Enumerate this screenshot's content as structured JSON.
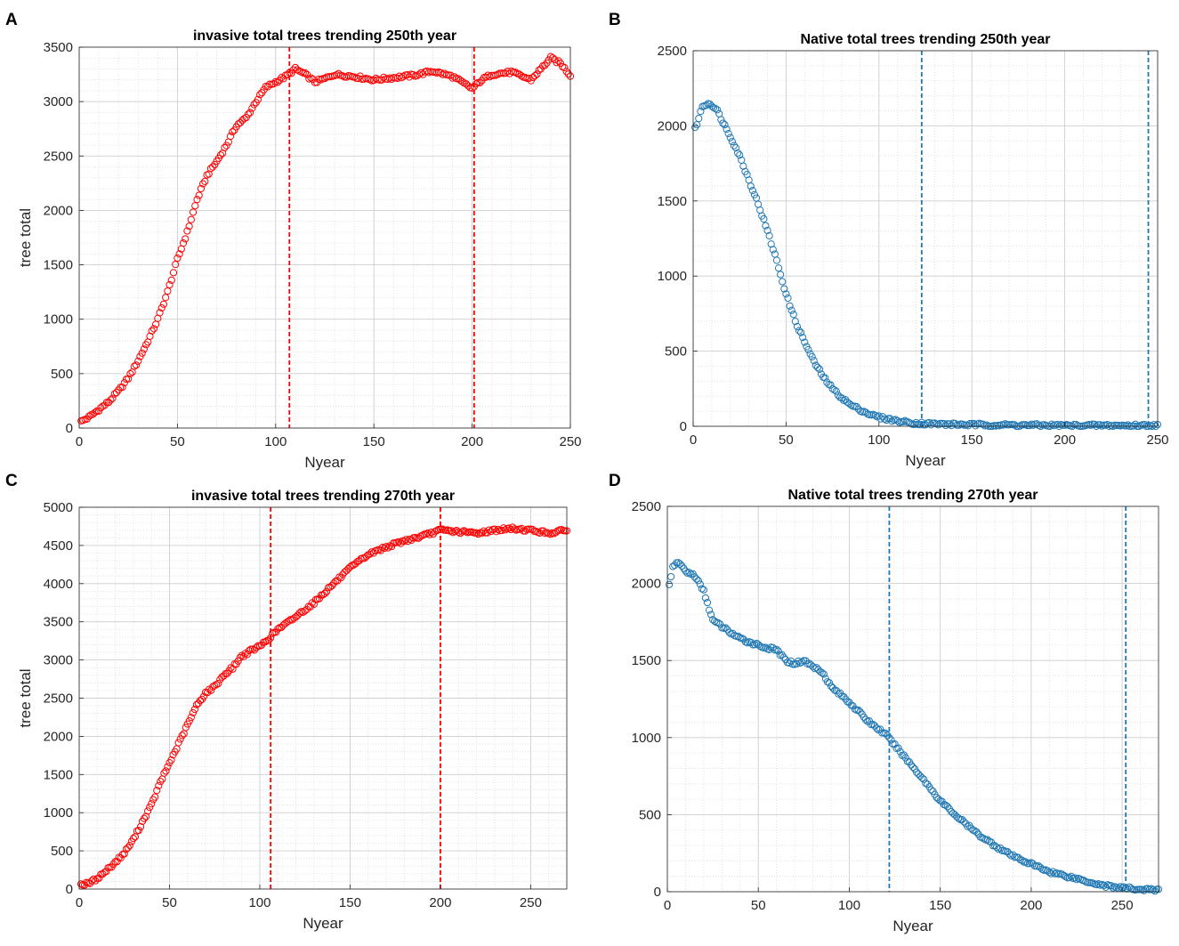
{
  "chart_data": [
    {
      "panel": "A",
      "type": "scatter",
      "title": "invasive total trees trending 250th year",
      "xlabel": "Nyear",
      "ylabel": "tree total",
      "xlim": [
        0,
        250
      ],
      "ylim": [
        0,
        3500
      ],
      "xticks": [
        0,
        50,
        100,
        150,
        200,
        250
      ],
      "yticks": [
        0,
        500,
        1000,
        1500,
        2000,
        2500,
        3000,
        3500
      ],
      "grid": true,
      "minor_grid": true,
      "marker": "open-circle",
      "color": "#ff0000",
      "vlines": [
        107,
        201
      ],
      "series_keypoints": {
        "x": [
          1,
          5,
          10,
          15,
          20,
          25,
          30,
          35,
          40,
          45,
          50,
          55,
          60,
          65,
          70,
          75,
          80,
          85,
          90,
          95,
          100,
          105,
          110,
          115,
          120,
          125,
          130,
          140,
          150,
          160,
          170,
          180,
          190,
          200,
          205,
          210,
          220,
          230,
          235,
          240,
          245,
          250
        ],
        "y": [
          60,
          100,
          170,
          240,
          340,
          460,
          620,
          800,
          1000,
          1250,
          1550,
          1800,
          2100,
          2320,
          2450,
          2600,
          2780,
          2850,
          3000,
          3130,
          3180,
          3230,
          3300,
          3250,
          3180,
          3210,
          3250,
          3230,
          3200,
          3220,
          3240,
          3280,
          3230,
          3120,
          3200,
          3250,
          3270,
          3200,
          3300,
          3400,
          3350,
          3240
        ]
      }
    },
    {
      "panel": "B",
      "type": "scatter",
      "title": "Native total trees trending 250th year",
      "xlabel": "Nyear",
      "ylabel": "",
      "xlim": [
        0,
        250
      ],
      "ylim": [
        0,
        2500
      ],
      "xticks": [
        0,
        50,
        100,
        150,
        200,
        250
      ],
      "yticks": [
        0,
        500,
        1000,
        1500,
        2000,
        2500
      ],
      "grid": true,
      "minor_grid": true,
      "marker": "open-circle",
      "color": "#1f77b4",
      "vlines": [
        123,
        245
      ],
      "series_keypoints": {
        "x": [
          1,
          3,
          5,
          8,
          10,
          13,
          15,
          20,
          25,
          30,
          35,
          40,
          45,
          50,
          55,
          60,
          65,
          70,
          75,
          80,
          85,
          90,
          95,
          100,
          110,
          120,
          130,
          150,
          200,
          250
        ],
        "y": [
          1980,
          2050,
          2130,
          2150,
          2140,
          2100,
          2050,
          1930,
          1800,
          1640,
          1480,
          1300,
          1100,
          880,
          700,
          560,
          430,
          330,
          250,
          190,
          140,
          110,
          80,
          60,
          35,
          20,
          15,
          10,
          5,
          5
        ]
      }
    },
    {
      "panel": "C",
      "type": "scatter",
      "title": "invasive total trees trending 270th year",
      "xlabel": "Nyear",
      "ylabel": "tree total",
      "xlim": [
        0,
        270
      ],
      "ylim": [
        0,
        5000
      ],
      "xticks": [
        0,
        50,
        100,
        150,
        200,
        250
      ],
      "yticks": [
        0,
        500,
        1000,
        1500,
        2000,
        2500,
        3000,
        3500,
        4000,
        4500,
        5000
      ],
      "grid": true,
      "minor_grid": true,
      "marker": "open-circle",
      "color": "#ff0000",
      "vlines": [
        106,
        200
      ],
      "series_keypoints": {
        "x": [
          1,
          5,
          10,
          15,
          20,
          25,
          30,
          35,
          40,
          45,
          50,
          55,
          60,
          65,
          70,
          75,
          80,
          85,
          90,
          95,
          100,
          105,
          110,
          115,
          120,
          130,
          140,
          150,
          160,
          170,
          180,
          190,
          200,
          210,
          220,
          230,
          240,
          250,
          260,
          270
        ],
        "y": [
          60,
          70,
          140,
          240,
          350,
          470,
          650,
          880,
          1100,
          1400,
          1650,
          1900,
          2150,
          2400,
          2570,
          2650,
          2800,
          2900,
          3050,
          3120,
          3180,
          3280,
          3400,
          3480,
          3570,
          3750,
          3980,
          4200,
          4380,
          4480,
          4560,
          4620,
          4700,
          4680,
          4660,
          4700,
          4720,
          4700,
          4660,
          4700
        ]
      }
    },
    {
      "panel": "D",
      "type": "scatter",
      "title": "Native total trees trending 270th year",
      "xlabel": "Nyear",
      "ylabel": "",
      "xlim": [
        0,
        270
      ],
      "ylim": [
        0,
        2500
      ],
      "xticks": [
        0,
        50,
        100,
        150,
        200,
        250
      ],
      "yticks": [
        0,
        500,
        1000,
        1500,
        2000,
        2500
      ],
      "grid": true,
      "minor_grid": true,
      "marker": "open-circle",
      "color": "#1f77b4",
      "vlines": [
        122,
        252
      ],
      "series_keypoints": {
        "x": [
          1,
          3,
          6,
          10,
          15,
          20,
          25,
          30,
          35,
          40,
          45,
          50,
          55,
          60,
          65,
          70,
          75,
          80,
          85,
          90,
          95,
          100,
          110,
          120,
          125,
          130,
          140,
          150,
          160,
          170,
          180,
          190,
          200,
          210,
          220,
          230,
          240,
          250,
          260,
          270
        ],
        "y": [
          2000,
          2100,
          2140,
          2080,
          2050,
          1950,
          1760,
          1720,
          1680,
          1640,
          1620,
          1600,
          1580,
          1570,
          1500,
          1480,
          1500,
          1460,
          1430,
          1330,
          1280,
          1230,
          1110,
          1020,
          950,
          880,
          740,
          590,
          480,
          380,
          300,
          230,
          180,
          130,
          100,
          70,
          40,
          25,
          15,
          10
        ]
      }
    }
  ]
}
